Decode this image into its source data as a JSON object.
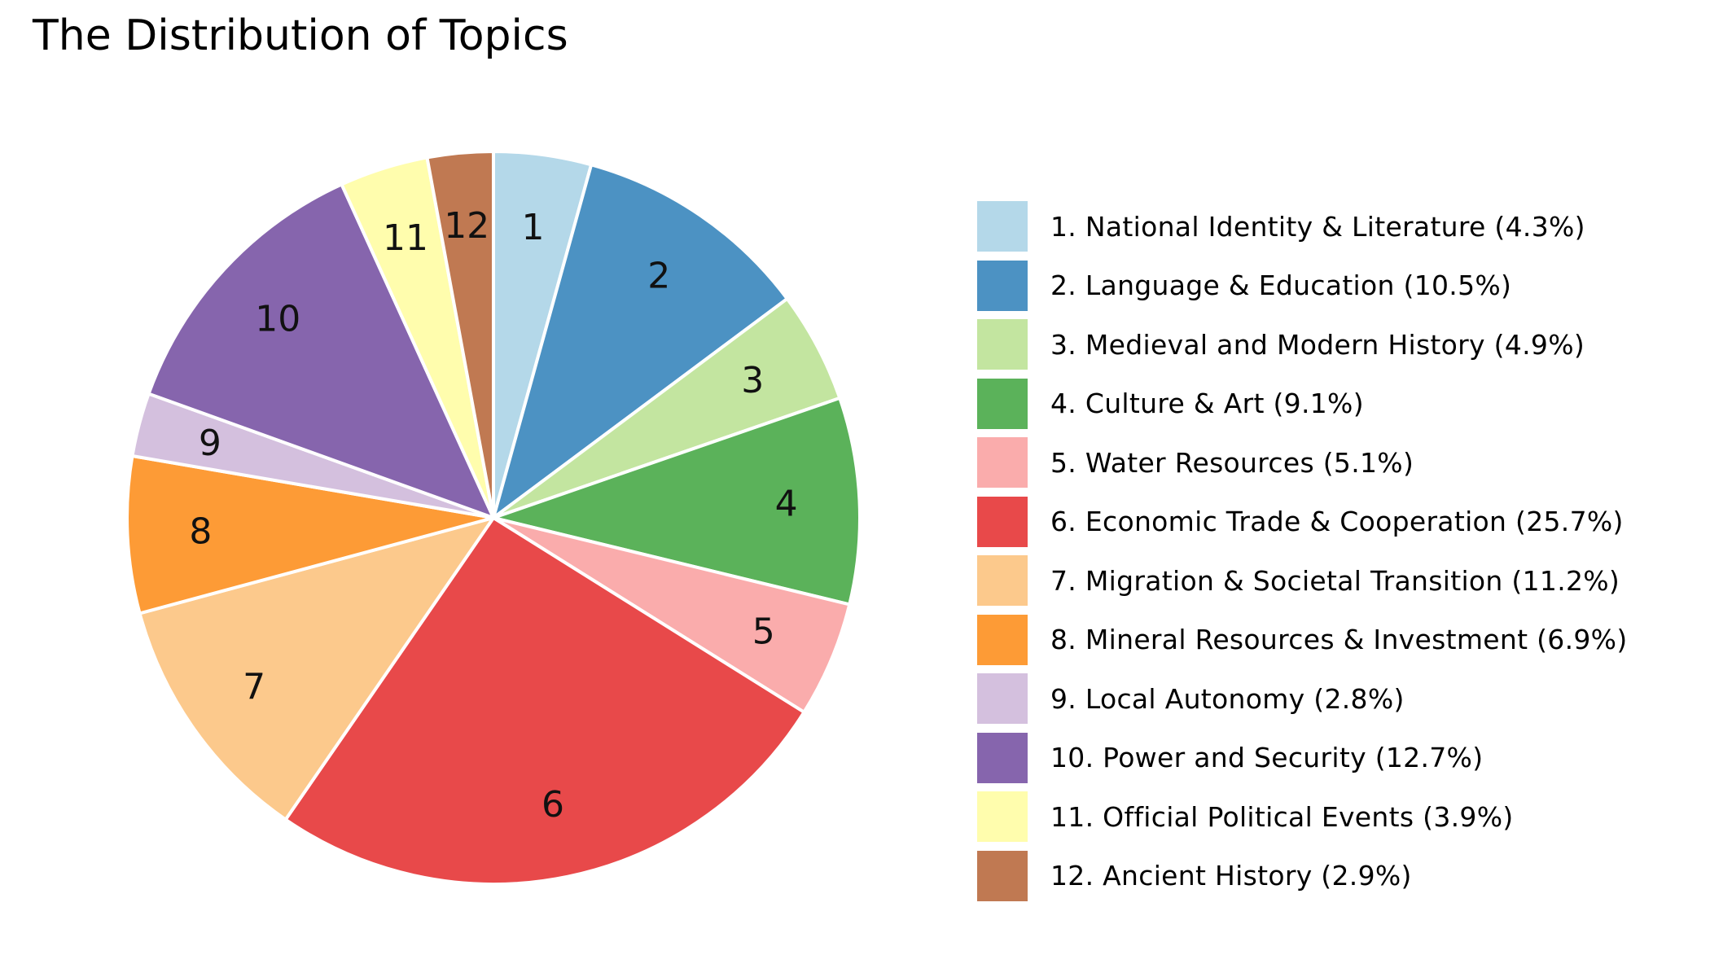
{
  "chart_data": {
    "type": "pie",
    "title": "The Distribution of Topics",
    "slices": [
      {
        "label": "1",
        "legend": "1. National Identity & Literature (4.3%)",
        "value": 4.3,
        "color": "#b4d8e9"
      },
      {
        "label": "2",
        "legend": "2. Language & Education (10.5%)",
        "value": 10.5,
        "color": "#4c92c3"
      },
      {
        "label": "3",
        "legend": "3. Medieval and Modern History (4.9%)",
        "value": 4.9,
        "color": "#c3e5a0"
      },
      {
        "label": "4",
        "legend": "4. Culture & Art (9.1%)",
        "value": 9.1,
        "color": "#5bb25a"
      },
      {
        "label": "5",
        "legend": "5. Water Resources (5.1%)",
        "value": 5.1,
        "color": "#faacac"
      },
      {
        "label": "6",
        "legend": "6. Economic Trade & Cooperation (25.7%)",
        "value": 25.7,
        "color": "#e8494a"
      },
      {
        "label": "7",
        "legend": "7. Migration & Societal Transition (11.2%)",
        "value": 11.2,
        "color": "#fcc98c"
      },
      {
        "label": "8",
        "legend": "8. Mineral Resources & Investment (6.9%)",
        "value": 6.9,
        "color": "#fd9b36"
      },
      {
        "label": "9",
        "legend": "9. Local Autonomy (2.8%)",
        "value": 2.8,
        "color": "#d4c0de"
      },
      {
        "label": "10",
        "legend": "10. Power and Security (12.7%)",
        "value": 12.7,
        "color": "#8665ad"
      },
      {
        "label": "11",
        "legend": "11. Official Political Events (3.9%)",
        "value": 3.9,
        "color": "#fffdad"
      },
      {
        "label": "12",
        "legend": "12. Ancient History (2.9%)",
        "value": 2.9,
        "color": "#c07952"
      }
    ],
    "start_angle": "top",
    "direction": "clockwise",
    "legend_position": "right"
  }
}
